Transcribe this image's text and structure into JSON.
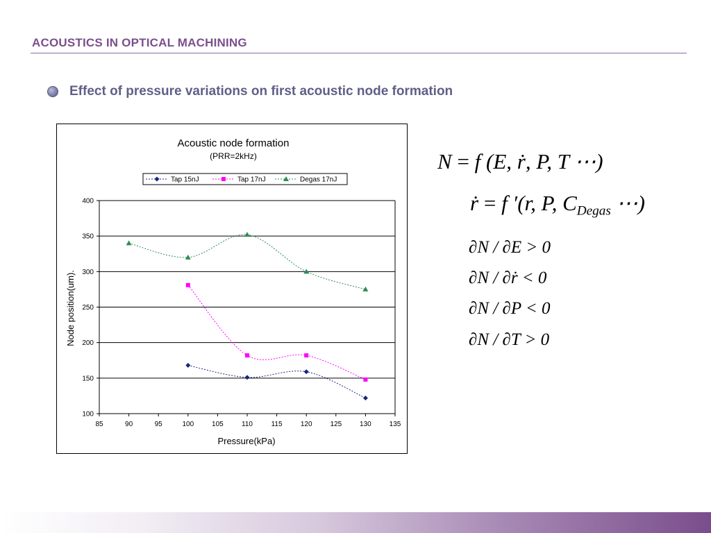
{
  "slide": {
    "title": "ACOUSTICS IN OPTICAL MACHINING",
    "bullet": "Effect of pressure variations on first acoustic node formation"
  },
  "chart_data": {
    "type": "line",
    "title": "Acoustic node formation",
    "subtitle": "(PRR=2kHz)",
    "xlabel": "Pressure(kPa)",
    "ylabel": "Node position(um).",
    "xlim": [
      85,
      135
    ],
    "ylim": [
      100,
      400
    ],
    "x_ticks": [
      85,
      90,
      95,
      100,
      105,
      110,
      115,
      120,
      125,
      130,
      135
    ],
    "y_ticks": [
      100,
      150,
      200,
      250,
      300,
      350,
      400
    ],
    "grid": "horizontal",
    "legend_position": "top",
    "series": [
      {
        "name": "Tap 15nJ",
        "marker": "diamond",
        "color": "#1a237e",
        "x": [
          100,
          110,
          120,
          130
        ],
        "y": [
          168,
          151,
          159,
          122
        ]
      },
      {
        "name": "Tap 17nJ",
        "marker": "square",
        "color": "#ff00ff",
        "x": [
          100,
          110,
          120,
          130
        ],
        "y": [
          281,
          182,
          182,
          148
        ]
      },
      {
        "name": "Degas 17nJ",
        "marker": "triangle",
        "color": "#2e8b57",
        "x": [
          90,
          100,
          110,
          120,
          130
        ],
        "y": [
          340,
          320,
          352,
          300,
          275
        ]
      }
    ]
  },
  "formulas": {
    "main": {
      "lhs": "N",
      "rhs": "f (E, ṙ, P, T ⋯)"
    },
    "rdot": {
      "lhs": "ṙ",
      "rhs": "f ′(r, P, C",
      "sub": "Degas",
      "tail": " ⋯)"
    },
    "partials": [
      "∂N / ∂E > 0",
      "∂N / ∂ṙ < 0",
      "∂N / ∂P < 0",
      "∂N / ∂T > 0"
    ]
  }
}
